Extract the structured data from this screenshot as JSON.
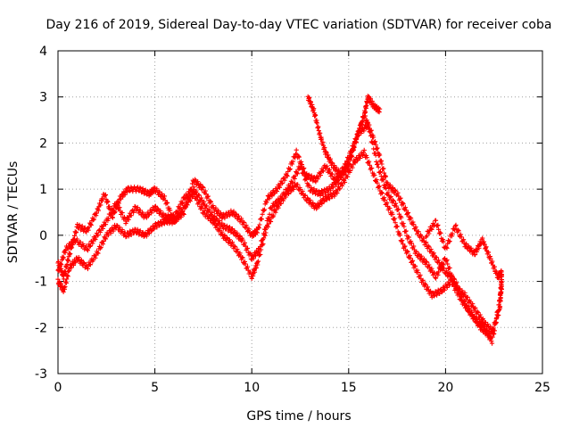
{
  "chart_data": {
    "type": "scatter",
    "title": "Day 216 of 2019, Sidereal Day-to-day VTEC variation (SDTVAR) for receiver coba",
    "xlabel": "GPS time / hours",
    "ylabel": "SDTVAR / TECUs",
    "xlim": [
      0,
      25
    ],
    "ylim": [
      -3,
      4
    ],
    "xticks": [
      "0",
      "5",
      "10",
      "15",
      "20",
      "25"
    ],
    "yticks": [
      "-3",
      "-2",
      "-1",
      "0",
      "1",
      "2",
      "3",
      "4"
    ],
    "grid": true,
    "marker": "plus",
    "series": [
      {
        "color": "#ff0000",
        "points": [
          [
            0.0,
            -0.6
          ],
          [
            0.3,
            -0.9
          ],
          [
            0.6,
            -0.4
          ],
          [
            1.0,
            0.2
          ],
          [
            1.5,
            0.1
          ],
          [
            2.0,
            0.5
          ],
          [
            2.4,
            0.9
          ],
          [
            2.8,
            0.4
          ],
          [
            3.2,
            0.8
          ],
          [
            3.6,
            1.0
          ],
          [
            4.2,
            1.0
          ],
          [
            4.7,
            0.9
          ],
          [
            5.0,
            1.0
          ],
          [
            5.5,
            0.8
          ],
          [
            6.0,
            0.3
          ],
          [
            6.5,
            0.5
          ],
          [
            7.0,
            1.2
          ],
          [
            7.5,
            1.0
          ],
          [
            8.0,
            0.6
          ],
          [
            8.5,
            0.4
          ],
          [
            9.0,
            0.5
          ],
          [
            9.5,
            0.3
          ],
          [
            10.0,
            0.0
          ],
          [
            10.3,
            0.1
          ],
          [
            10.8,
            0.8
          ],
          [
            11.3,
            1.0
          ],
          [
            11.8,
            1.3
          ],
          [
            12.3,
            1.8
          ],
          [
            12.8,
            1.3
          ],
          [
            13.3,
            1.2
          ],
          [
            13.8,
            1.5
          ],
          [
            14.3,
            1.2
          ],
          [
            14.8,
            1.5
          ],
          [
            15.3,
            2.0
          ],
          [
            15.8,
            2.6
          ],
          [
            16.2,
            2.2
          ],
          [
            16.6,
            1.7
          ],
          [
            17.0,
            1.1
          ],
          [
            17.5,
            0.9
          ],
          [
            18.0,
            0.5
          ],
          [
            18.5,
            0.1
          ],
          [
            19.0,
            -0.2
          ],
          [
            19.5,
            -0.5
          ],
          [
            20.0,
            -0.8
          ],
          [
            20.5,
            -1.0
          ],
          [
            21.0,
            -1.5
          ],
          [
            21.5,
            -1.8
          ],
          [
            22.0,
            -2.0
          ],
          [
            22.4,
            -2.3
          ],
          [
            22.8,
            -1.4
          ],
          [
            22.9,
            -0.9
          ]
        ]
      },
      {
        "color": "#ff0000",
        "points": [
          [
            0.0,
            -0.8
          ],
          [
            0.4,
            -0.3
          ],
          [
            0.9,
            -0.1
          ],
          [
            1.5,
            -0.3
          ],
          [
            2.0,
            0.0
          ],
          [
            2.5,
            0.3
          ],
          [
            3.0,
            0.7
          ],
          [
            3.5,
            0.3
          ],
          [
            4.0,
            0.6
          ],
          [
            4.5,
            0.4
          ],
          [
            5.0,
            0.6
          ],
          [
            5.5,
            0.4
          ],
          [
            6.0,
            0.4
          ],
          [
            6.5,
            0.8
          ],
          [
            7.0,
            1.0
          ],
          [
            7.5,
            0.7
          ],
          [
            8.0,
            0.4
          ],
          [
            8.5,
            0.2
          ],
          [
            9.0,
            0.1
          ],
          [
            9.5,
            -0.1
          ],
          [
            10.0,
            -0.5
          ],
          [
            10.4,
            -0.3
          ],
          [
            11.0,
            0.6
          ],
          [
            11.5,
            0.8
          ],
          [
            12.0,
            1.1
          ],
          [
            12.5,
            1.5
          ],
          [
            13.0,
            1.0
          ],
          [
            13.5,
            0.9
          ],
          [
            14.0,
            1.0
          ],
          [
            14.5,
            1.2
          ],
          [
            15.0,
            1.6
          ],
          [
            15.5,
            2.2
          ],
          [
            16.0,
            2.4
          ],
          [
            16.5,
            1.5
          ],
          [
            17.0,
            0.9
          ],
          [
            17.5,
            0.6
          ],
          [
            18.0,
            0.0
          ],
          [
            18.5,
            -0.4
          ],
          [
            19.0,
            -0.6
          ],
          [
            19.5,
            -0.9
          ],
          [
            20.0,
            -0.5
          ],
          [
            20.5,
            -1.1
          ],
          [
            21.0,
            -1.3
          ],
          [
            21.5,
            -1.6
          ],
          [
            22.0,
            -1.9
          ],
          [
            22.5,
            -2.1
          ],
          [
            22.9,
            -1.2
          ]
        ]
      },
      {
        "color": "#ff0000",
        "points": [
          [
            0.0,
            -1.0
          ],
          [
            0.3,
            -1.2
          ],
          [
            0.6,
            -0.7
          ],
          [
            1.0,
            -0.5
          ],
          [
            1.5,
            -0.7
          ],
          [
            2.0,
            -0.4
          ],
          [
            2.5,
            0.0
          ],
          [
            3.0,
            0.2
          ],
          [
            3.5,
            0.0
          ],
          [
            4.0,
            0.1
          ],
          [
            4.5,
            0.0
          ],
          [
            5.0,
            0.2
          ],
          [
            5.5,
            0.3
          ],
          [
            6.0,
            0.3
          ],
          [
            6.5,
            0.6
          ],
          [
            7.0,
            0.9
          ],
          [
            7.5,
            0.5
          ],
          [
            8.0,
            0.3
          ],
          [
            8.5,
            0.0
          ],
          [
            9.0,
            -0.2
          ],
          [
            9.5,
            -0.5
          ],
          [
            10.0,
            -0.9
          ],
          [
            10.3,
            -0.6
          ],
          [
            10.8,
            0.2
          ],
          [
            11.3,
            0.6
          ],
          [
            11.8,
            0.9
          ],
          [
            12.3,
            1.1
          ],
          [
            12.8,
            0.8
          ],
          [
            13.3,
            0.6
          ],
          [
            13.8,
            0.8
          ],
          [
            14.3,
            0.9
          ],
          [
            14.8,
            1.2
          ],
          [
            15.3,
            1.6
          ],
          [
            15.8,
            1.8
          ],
          [
            16.3,
            1.3
          ],
          [
            16.8,
            0.8
          ],
          [
            17.3,
            0.4
          ],
          [
            17.8,
            -0.2
          ],
          [
            18.3,
            -0.6
          ],
          [
            18.8,
            -1.0
          ],
          [
            19.3,
            -1.3
          ],
          [
            19.8,
            -1.2
          ],
          [
            20.3,
            -1.0
          ],
          [
            20.8,
            -1.4
          ],
          [
            21.3,
            -1.7
          ],
          [
            21.8,
            -2.0
          ],
          [
            22.3,
            -2.2
          ],
          [
            22.8,
            -1.6
          ],
          [
            22.9,
            -1.0
          ]
        ]
      },
      {
        "color": "#ff0000",
        "points": [
          [
            12.9,
            3.0
          ],
          [
            13.2,
            2.7
          ],
          [
            13.5,
            2.2
          ],
          [
            13.8,
            1.8
          ],
          [
            14.2,
            1.5
          ],
          [
            14.6,
            1.3
          ],
          [
            15.0,
            1.5
          ],
          [
            15.4,
            2.1
          ],
          [
            15.8,
            2.6
          ],
          [
            16.0,
            3.0
          ],
          [
            16.3,
            2.8
          ],
          [
            16.6,
            2.7
          ]
        ]
      },
      {
        "color": "#ff0000",
        "points": [
          [
            19.0,
            0.0
          ],
          [
            19.5,
            0.3
          ],
          [
            20.0,
            -0.3
          ],
          [
            20.5,
            0.2
          ],
          [
            21.0,
            -0.2
          ],
          [
            21.5,
            -0.4
          ],
          [
            21.9,
            -0.1
          ],
          [
            22.3,
            -0.5
          ],
          [
            22.7,
            -0.9
          ],
          [
            22.9,
            -0.8
          ]
        ]
      }
    ]
  }
}
